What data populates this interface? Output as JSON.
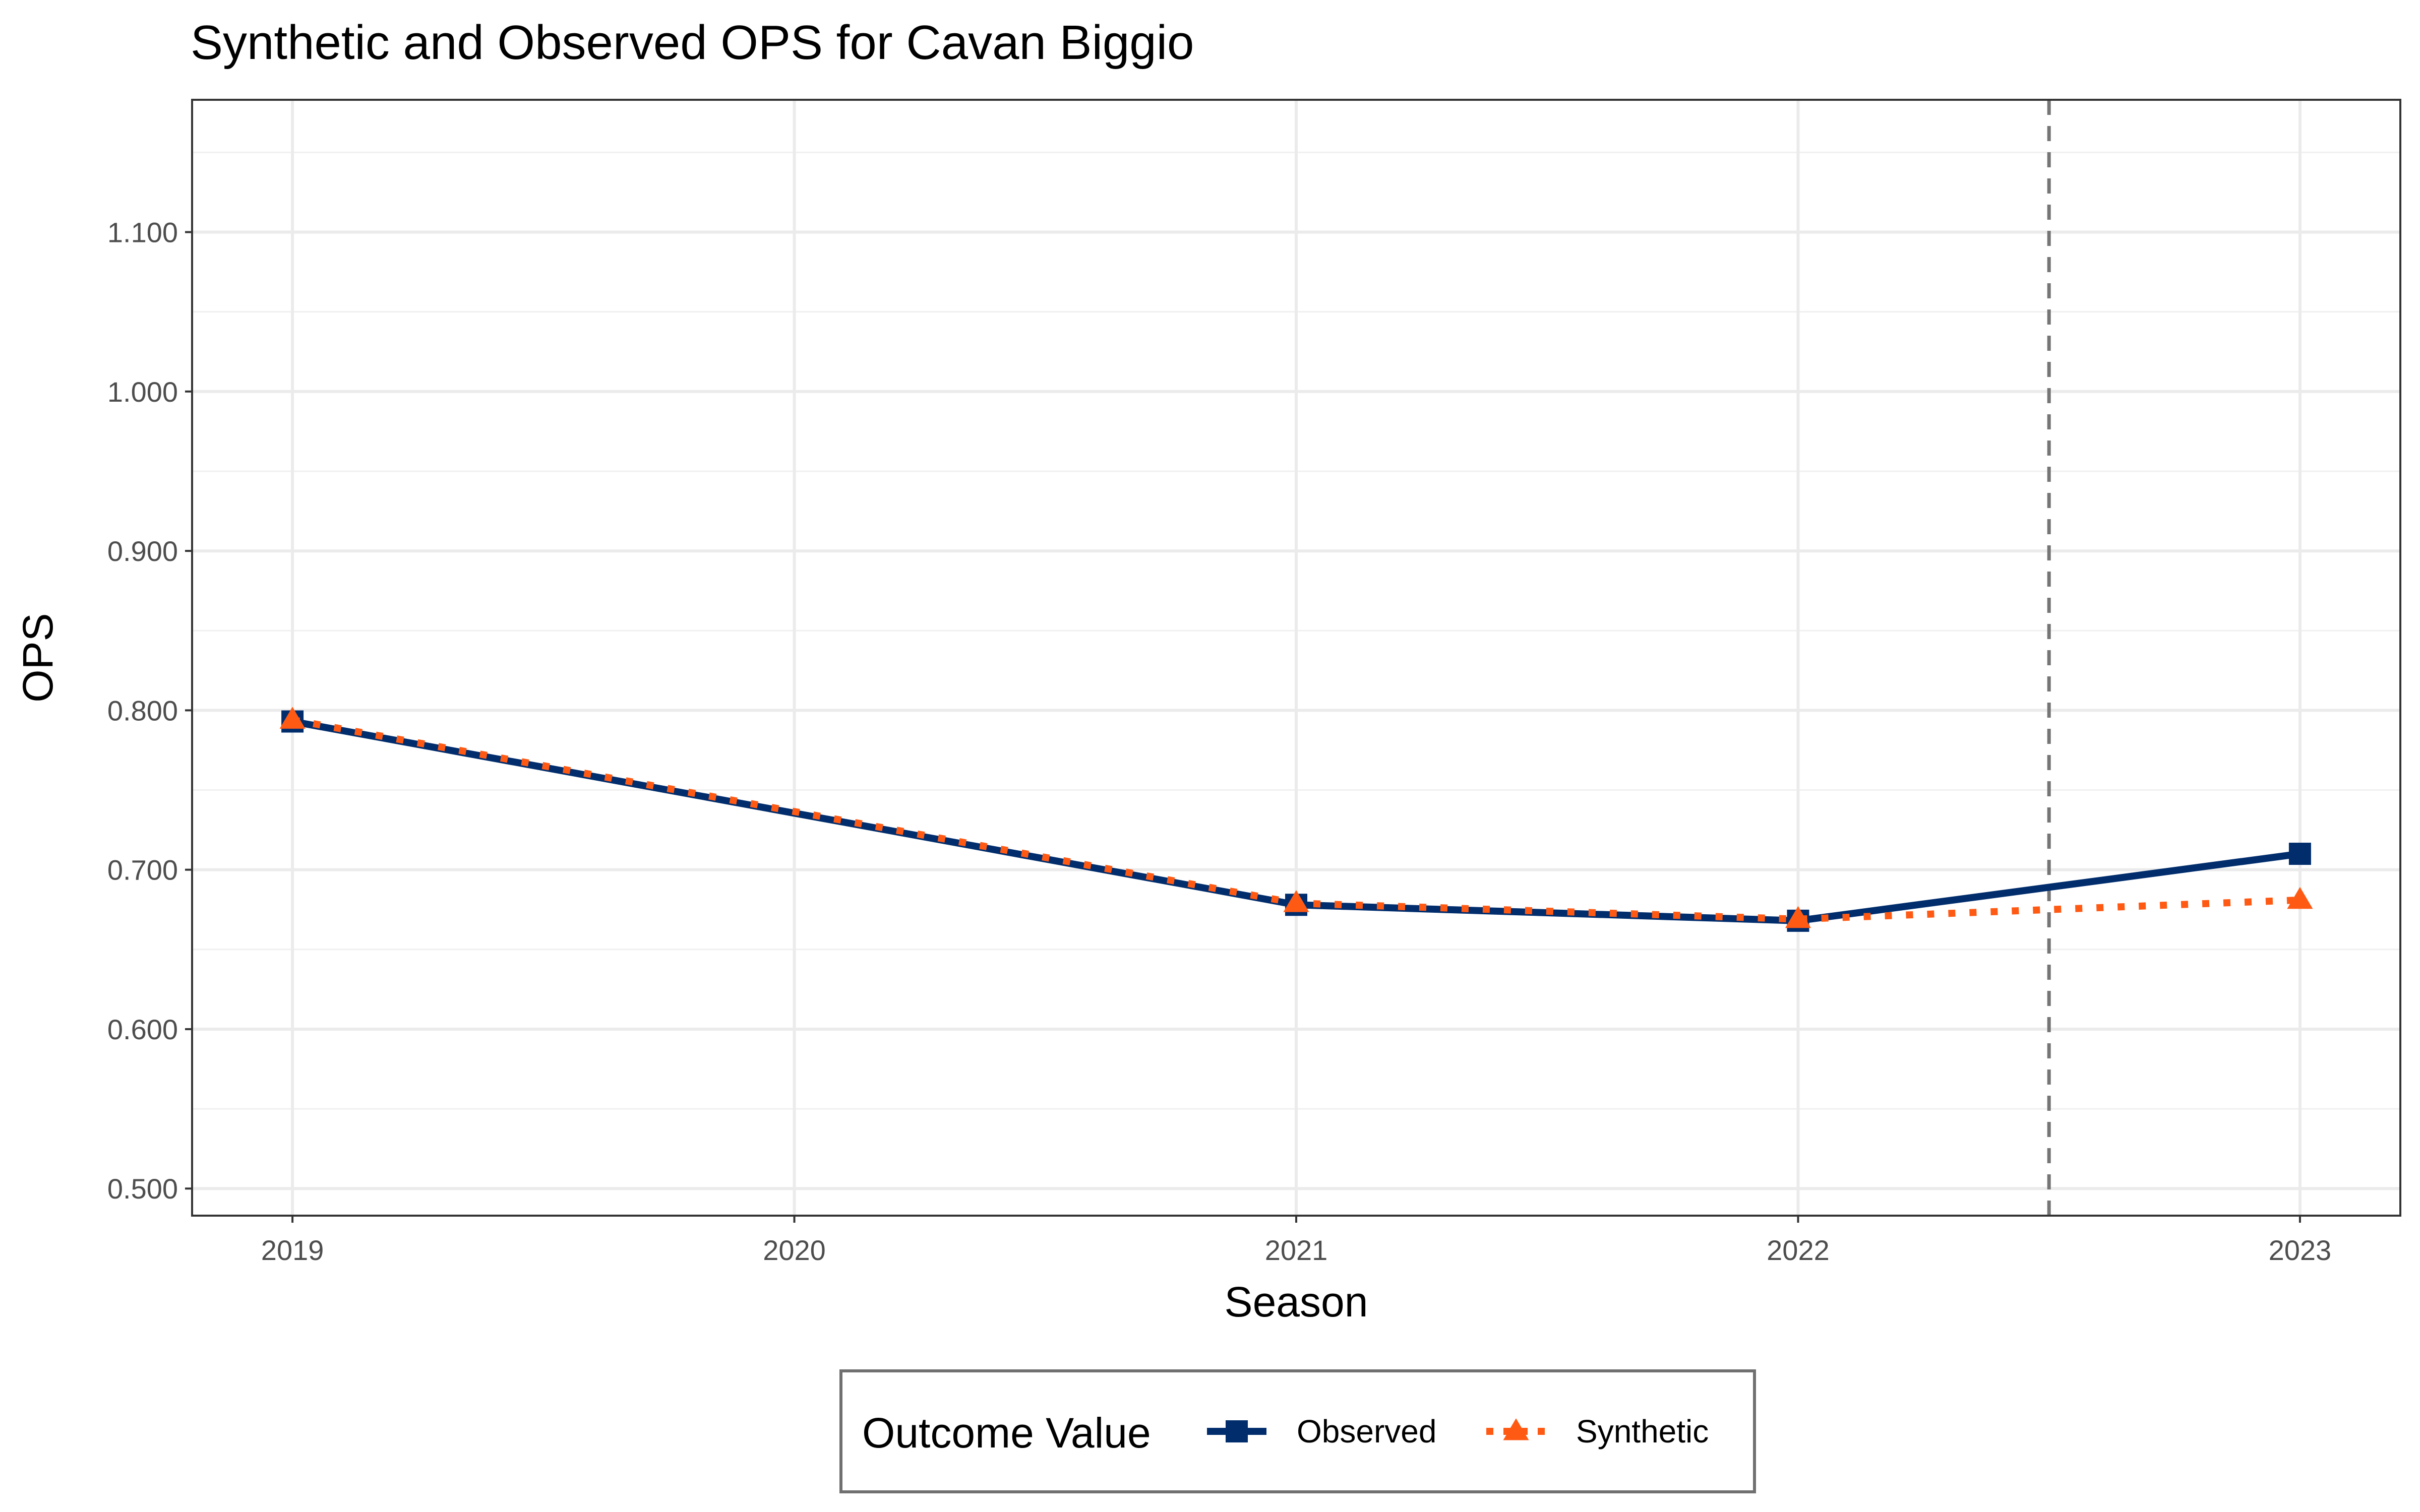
{
  "chart_data": {
    "type": "line",
    "title": "Synthetic and Observed OPS for Cavan Biggio",
    "xlabel": "Season",
    "ylabel": "OPS",
    "x": [
      2019,
      2020,
      2021,
      2022,
      2023
    ],
    "x_tick_labels": [
      "2019",
      "2020",
      "2021",
      "2022",
      "2023"
    ],
    "xlim": [
      2018.8,
      2023.2
    ],
    "ylim": [
      0.483,
      1.183
    ],
    "y_ticks": [
      0.5,
      0.6,
      0.7,
      0.8,
      0.9,
      1.0,
      1.1
    ],
    "y_tick_labels": [
      "0.500",
      "0.600",
      "0.700",
      "0.800",
      "0.900",
      "1.000",
      "1.100"
    ],
    "grid": true,
    "legend": {
      "title": "Outcome Value",
      "position": "bottom"
    },
    "intervention_line": {
      "x": 2022.5,
      "style": "dashed",
      "color": "#757575"
    },
    "series": [
      {
        "name": "Observed",
        "x": [
          2019,
          2021,
          2022,
          2023
        ],
        "values": [
          0.793,
          0.678,
          0.668,
          0.71
        ],
        "color": "#012d6d",
        "line": "solid",
        "marker": "square"
      },
      {
        "name": "Synthetic",
        "x": [
          2019,
          2021,
          2022,
          2023
        ],
        "values": [
          0.794,
          0.679,
          0.669,
          0.681
        ],
        "color": "#ff5a14",
        "line": "dotted",
        "marker": "triangle"
      }
    ]
  }
}
